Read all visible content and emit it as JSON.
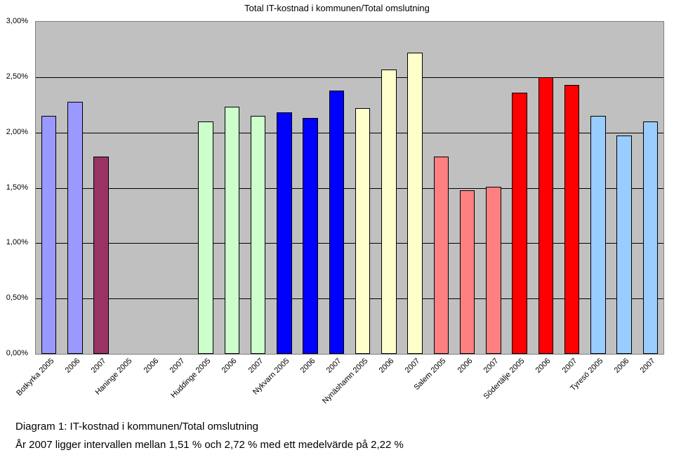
{
  "chart": {
    "type": "bar",
    "title": "Total IT-kostnad i kommunen/Total omslutning",
    "title_fontsize": 13,
    "label_fontsize": 11,
    "background_color": "#c0c0c0",
    "grid_color": "#000000",
    "border_color": "#808080",
    "ylim": [
      0,
      3
    ],
    "yticks": [
      "0,00%",
      "0,50%",
      "1,00%",
      "1,50%",
      "2,00%",
      "2,50%",
      "3,00%"
    ],
    "bar_border": "#000000",
    "bar_width_ratio": 0.58,
    "categories": [
      "Botkyrka 2005",
      "2006",
      "2007",
      "Haninge 2005",
      "2006",
      "2007",
      "Huddinge 2005",
      "2006",
      "2007",
      "Nykvarn 2005",
      "2006",
      "2007",
      "Nynäshamn 2005",
      "2006",
      "2007",
      "Salem 2005",
      "2006",
      "2007",
      "Södertälje 2005",
      "2006",
      "2007",
      "Tyresö 2005",
      "2006",
      "2007"
    ],
    "values": [
      2.15,
      2.28,
      1.78,
      null,
      null,
      null,
      2.1,
      2.23,
      2.15,
      2.18,
      2.13,
      2.38,
      2.22,
      2.57,
      2.72,
      1.78,
      1.48,
      1.51,
      2.36,
      2.5,
      2.43,
      2.15,
      1.97,
      2.1
    ],
    "colors": [
      "#9999ff",
      "#9999ff",
      "#993366",
      "#ccffcc",
      "#ccffcc",
      "#ccffcc",
      "#ccffcc",
      "#ccffcc",
      "#ccffcc",
      "#0000ff",
      "#0000ff",
      "#0000ff",
      "#ffffcc",
      "#ffffcc",
      "#ffffcc",
      "#ff8080",
      "#ff8080",
      "#ff8080",
      "#ff0000",
      "#ff0000",
      "#ff0000",
      "#99ccff",
      "#99ccff",
      "#99ccff"
    ]
  },
  "caption": {
    "line1": "Diagram 1: IT-kostnad i kommunen/Total omslutning",
    "line2": "År 2007 ligger intervallen mellan 1,51 % och 2,72 % med ett medelvärde på 2,22 %"
  }
}
